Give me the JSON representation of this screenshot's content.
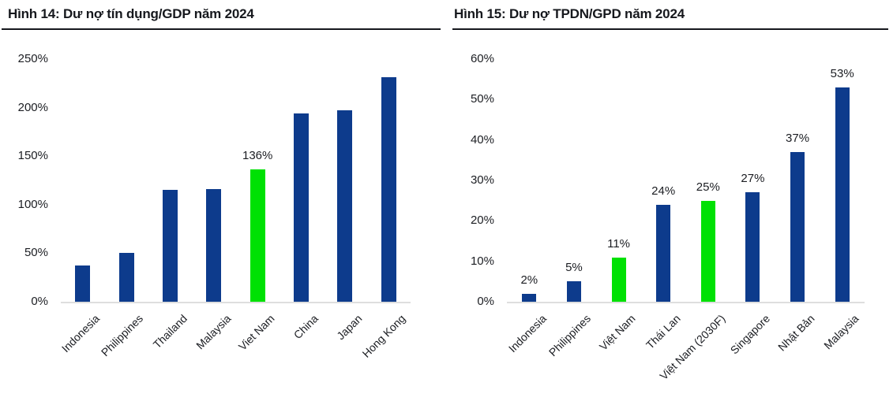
{
  "page": {
    "background": "#ffffff"
  },
  "colors": {
    "bar_blue": "#0d3b8c",
    "bar_highlight_green": "#00e104",
    "title_text": "#16181d",
    "tick_text": "#1b1d22",
    "axis_line": "#dedede"
  },
  "chart_data": [
    {
      "type": "bar",
      "title": "Hình 14: Dư nợ tín dụng/GDP năm 2024",
      "categories": [
        "Indonesia",
        "Philippines",
        "Thailand",
        "Malaysia",
        "Viet Nam",
        "China",
        "Japan",
        "Hong Kong"
      ],
      "values": [
        37,
        50,
        115,
        116,
        136,
        194,
        197,
        231
      ],
      "bar_labels": [
        "",
        "",
        "",
        "",
        "136%",
        "",
        "",
        ""
      ],
      "highlight_indices": [
        4
      ],
      "bar_color": "#0d3b8c",
      "highlight_color": "#00e104",
      "ylim": [
        0,
        250
      ],
      "yticks": [
        0,
        50,
        100,
        150,
        200,
        250
      ],
      "ytick_suffix": "%",
      "xlabel": "",
      "ylabel": "",
      "grid": false,
      "legend": "none"
    },
    {
      "type": "bar",
      "title": "Hình 15: Dư nợ TPDN/GPD năm 2024",
      "categories": [
        "Indonesia",
        "Philippines",
        "Việt Nam",
        "Thái Lan",
        "Việt Nam (2030F)",
        "Singapore",
        "Nhật Bản",
        "Malaysia"
      ],
      "values": [
        2,
        5,
        11,
        24,
        25,
        27,
        37,
        53
      ],
      "bar_labels": [
        "2%",
        "5%",
        "11%",
        "24%",
        "25%",
        "27%",
        "37%",
        "53%"
      ],
      "highlight_indices": [
        2,
        4
      ],
      "bar_color": "#0d3b8c",
      "highlight_color": "#00e104",
      "ylim": [
        0,
        60
      ],
      "yticks": [
        0,
        10,
        20,
        30,
        40,
        50,
        60
      ],
      "ytick_suffix": "%",
      "xlabel": "",
      "ylabel": "",
      "grid": false,
      "legend": "none"
    }
  ]
}
